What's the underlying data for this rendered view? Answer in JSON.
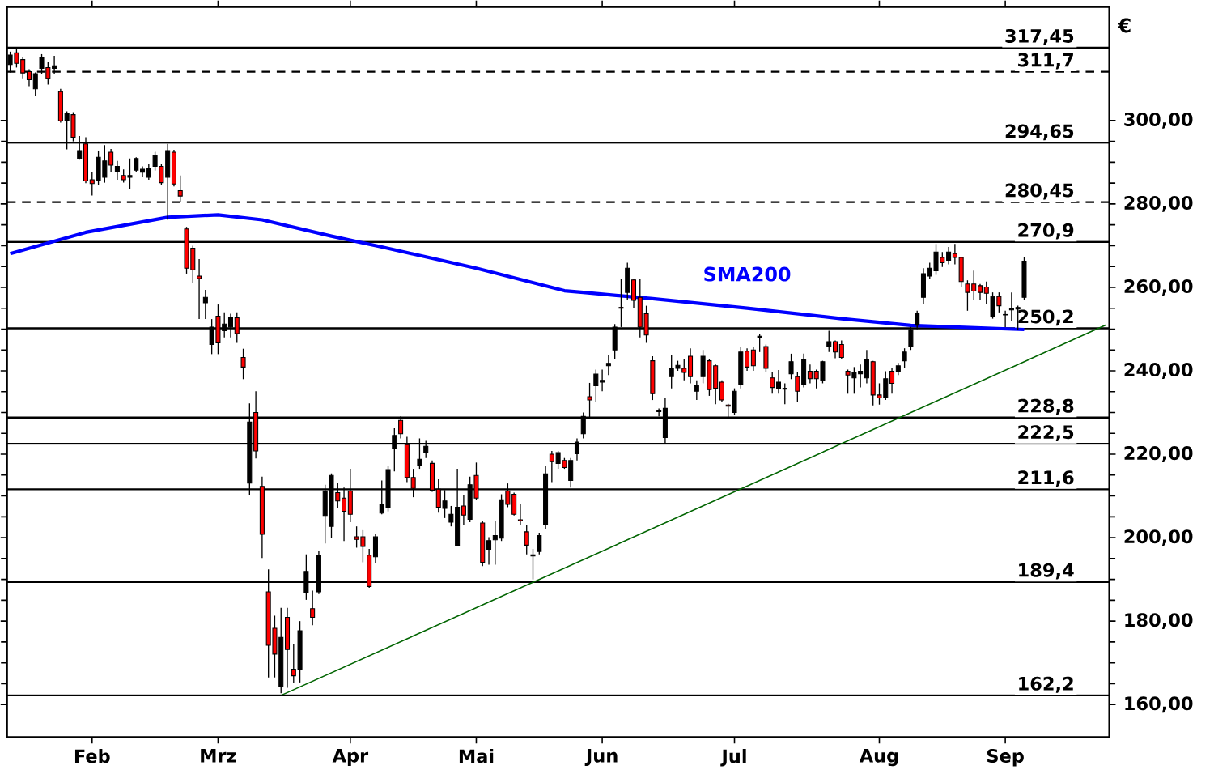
{
  "chart_data": {
    "type": "candlestick",
    "ylabel": "€",
    "categories": [
      null,
      null,
      null,
      null,
      null,
      null,
      null,
      null,
      null,
      null,
      null,
      null,
      null,
      "Feb",
      null,
      null,
      null,
      null,
      null,
      null,
      null,
      null,
      null,
      null,
      null,
      null,
      null,
      null,
      null,
      null,
      null,
      null,
      null,
      "Mrz",
      null,
      null,
      null,
      null,
      null,
      null,
      null,
      null,
      null,
      null,
      null,
      null,
      null,
      null,
      null,
      null,
      null,
      null,
      null,
      null,
      "Apr",
      null,
      null,
      null,
      null,
      null,
      null,
      null,
      null,
      null,
      null,
      null,
      null,
      null,
      null,
      null,
      null,
      null,
      null,
      null,
      "Mai",
      null,
      null,
      null,
      null,
      null,
      null,
      null,
      null,
      null,
      null,
      null,
      null,
      null,
      null,
      null,
      null,
      null,
      null,
      null,
      "Jun",
      null,
      null,
      null,
      null,
      null,
      null,
      null,
      null,
      null,
      null,
      null,
      null,
      null,
      null,
      null,
      null,
      null,
      null,
      null,
      null,
      "Jul",
      null,
      null,
      null,
      null,
      null,
      null,
      null,
      null,
      null,
      null,
      null,
      null,
      null,
      null,
      null,
      null,
      null,
      null,
      null,
      null,
      null,
      null,
      "Aug",
      null,
      null,
      null,
      null,
      null,
      null,
      null,
      null,
      null,
      null,
      null,
      null,
      null,
      null,
      null,
      null,
      null,
      null,
      null,
      "Sep",
      null,
      null,
      null,
      null,
      null,
      null,
      null,
      null,
      null,
      null,
      null,
      null,
      null,
      null,
      null,
      null
    ],
    "ylim": [
      152.2,
      327.2
    ],
    "yticks": [
      {
        "value": 160,
        "label": "160,00"
      },
      {
        "value": 180,
        "label": "180,00"
      },
      {
        "value": 200,
        "label": "200,00"
      },
      {
        "value": 220,
        "label": "220,00"
      },
      {
        "value": 240,
        "label": "240,00"
      },
      {
        "value": 260,
        "label": "260,00"
      },
      {
        "value": 280,
        "label": "280,00"
      },
      {
        "value": 300,
        "label": "300,00"
      }
    ],
    "grid": false,
    "legend": false,
    "ref_lines": [
      {
        "axis": "y",
        "value": 317.45,
        "label": "317,45",
        "color": "#000000",
        "line_style": "solid"
      },
      {
        "axis": "y",
        "value": 311.7,
        "label": "311,7",
        "color": "#000000",
        "line_style": "dashed"
      },
      {
        "axis": "y",
        "value": 294.65,
        "label": "294,65",
        "color": "#000000",
        "line_style": "solid"
      },
      {
        "axis": "y",
        "value": 280.45,
        "label": "280,45",
        "color": "#000000",
        "line_style": "dashed"
      },
      {
        "axis": "y",
        "value": 270.9,
        "label": "270,9",
        "color": "#000000",
        "line_style": "solid"
      },
      {
        "axis": "y",
        "value": 250.2,
        "label": "250,2",
        "color": "#000000",
        "line_style": "solid"
      },
      {
        "axis": "y",
        "value": 228.8,
        "label": "228,8",
        "color": "#000000",
        "line_style": "solid"
      },
      {
        "axis": "y",
        "value": 222.5,
        "label": "222,5",
        "color": "#000000",
        "line_style": "solid"
      },
      {
        "axis": "y",
        "value": 211.6,
        "label": "211,6",
        "color": "#000000",
        "line_style": "solid"
      },
      {
        "axis": "y",
        "value": 189.4,
        "label": "189,4",
        "color": "#000000",
        "line_style": "solid"
      },
      {
        "axis": "y",
        "value": 162.2,
        "label": "162,2",
        "color": "#000000",
        "line_style": "solid"
      }
    ],
    "series": [
      {
        "ohlc": [
          [
            313.4,
            316.5,
            311.5,
            315.7
          ],
          [
            316.2,
            317.2,
            312.7,
            313.7
          ],
          [
            314.6,
            315.3,
            310.1,
            311.4
          ],
          [
            311.7,
            312.3,
            308.2,
            309.8
          ],
          [
            307.6,
            311.5,
            306.0,
            311.2
          ],
          [
            312.5,
            315.9,
            311.2,
            315.0
          ],
          [
            312.7,
            314.0,
            308.6,
            310.1
          ],
          [
            312.5,
            315.5,
            311.2,
            313.1
          ],
          [
            306.9,
            307.6,
            299.5,
            299.9
          ],
          [
            299.9,
            302.2,
            293.1,
            301.8
          ],
          [
            301.4,
            302.0,
            295.0,
            296.0
          ],
          [
            290.9,
            296.3,
            290.6,
            292.8
          ],
          [
            294.4,
            296.0,
            285.0,
            285.5
          ],
          [
            285.8,
            287.7,
            282.0,
            284.9
          ],
          [
            285.5,
            292.8,
            284.5,
            291.2
          ],
          [
            286.4,
            294.1,
            285.1,
            290.3
          ],
          [
            292.4,
            293.2,
            287.7,
            289.3
          ],
          [
            287.7,
            290.3,
            285.8,
            289.0
          ],
          [
            286.8,
            288.3,
            285.1,
            285.8
          ],
          [
            286.4,
            290.9,
            283.5,
            286.8
          ],
          [
            288.1,
            291.2,
            287.6,
            290.9
          ],
          [
            287.6,
            289.0,
            286.4,
            288.3
          ],
          [
            286.4,
            289.5,
            285.8,
            288.6
          ],
          [
            289.0,
            292.5,
            288.0,
            291.6
          ],
          [
            289.0,
            289.5,
            284.5,
            285.1
          ],
          [
            286.4,
            294.4,
            276.2,
            292.8
          ],
          [
            292.4,
            293.0,
            284.2,
            284.8
          ],
          [
            283.2,
            286.8,
            280.4,
            281.9
          ],
          [
            274.0,
            274.5,
            263.3,
            264.6
          ],
          [
            269.4,
            270.0,
            261.0,
            264.2
          ],
          [
            262.7,
            266.8,
            252.4,
            262.1
          ],
          [
            256.3,
            259.4,
            252.4,
            257.6
          ],
          [
            246.3,
            252.4,
            244.0,
            250.5
          ],
          [
            253.1,
            255.9,
            244.0,
            246.7
          ],
          [
            249.6,
            254.0,
            248.0,
            251.2
          ],
          [
            250.5,
            253.7,
            248.0,
            252.7
          ],
          [
            252.7,
            254.0,
            246.7,
            248.9
          ],
          [
            243.2,
            245.3,
            238.0,
            240.9
          ],
          [
            213.1,
            232.2,
            210.1,
            227.7
          ],
          [
            230.0,
            235.1,
            219.0,
            220.8
          ],
          [
            212.3,
            214.6,
            195.1,
            200.8
          ],
          [
            187.0,
            192.4,
            166.5,
            174.2
          ],
          [
            178.3,
            181.3,
            166.5,
            172.1
          ],
          [
            164.2,
            183.2,
            162.7,
            176.1
          ],
          [
            180.9,
            183.2,
            164.0,
            173.2
          ],
          [
            168.5,
            174.5,
            165.3,
            166.9
          ],
          [
            168.5,
            180.0,
            165.3,
            177.7
          ],
          [
            186.8,
            196.0,
            185.1,
            191.9
          ],
          [
            183.0,
            187.3,
            179.0,
            180.9
          ],
          [
            187.0,
            196.7,
            186.5,
            195.8
          ],
          [
            205.3,
            212.7,
            198.6,
            211.2
          ],
          [
            202.7,
            215.4,
            200.0,
            214.9
          ],
          [
            210.8,
            213.0,
            207.2,
            208.8
          ],
          [
            209.5,
            212.0,
            199.2,
            206.3
          ],
          [
            211.2,
            216.5,
            203.7,
            205.6
          ],
          [
            200.2,
            202.7,
            197.6,
            199.6
          ],
          [
            200.2,
            201.8,
            194.1,
            197.9
          ],
          [
            195.8,
            197.3,
            188.0,
            188.3
          ],
          [
            195.4,
            200.8,
            194.0,
            200.2
          ],
          [
            205.9,
            213.7,
            205.6,
            208.0
          ],
          [
            207.3,
            217.2,
            206.3,
            216.3
          ],
          [
            221.3,
            226.2,
            215.9,
            224.5
          ],
          [
            228.1,
            229.1,
            223.8,
            224.9
          ],
          [
            222.3,
            224.2,
            213.3,
            214.4
          ],
          [
            214.4,
            216.5,
            209.7,
            211.8
          ],
          [
            217.2,
            223.8,
            216.5,
            218.8
          ],
          [
            220.4,
            223.2,
            219.1,
            221.9
          ],
          [
            217.8,
            218.5,
            211.0,
            211.4
          ],
          [
            211.6,
            214.0,
            206.0,
            207.3
          ],
          [
            207.0,
            211.4,
            204.7,
            208.8
          ],
          [
            203.7,
            207.6,
            202.7,
            205.6
          ],
          [
            198.2,
            216.5,
            198.0,
            207.3
          ],
          [
            207.6,
            210.1,
            203.0,
            205.4
          ],
          [
            204.4,
            214.6,
            203.7,
            212.7
          ],
          [
            214.9,
            218.0,
            209.0,
            209.5
          ],
          [
            203.5,
            204.0,
            193.2,
            194.1
          ],
          [
            197.2,
            200.1,
            193.5,
            199.3
          ],
          [
            199.5,
            204.0,
            193.5,
            200.5
          ],
          [
            199.9,
            210.4,
            199.2,
            209.1
          ],
          [
            211.2,
            213.0,
            207.3,
            208.0
          ],
          [
            210.4,
            210.8,
            205.3,
            205.6
          ],
          [
            204.3,
            208.0,
            203.0,
            204.0
          ],
          [
            201.4,
            203.1,
            196.0,
            198.2
          ],
          [
            195.6,
            197.3,
            190.0,
            195.9
          ],
          [
            196.7,
            201.2,
            196.0,
            200.5
          ],
          [
            203.1,
            217.2,
            202.0,
            215.3
          ],
          [
            220.0,
            220.8,
            213.3,
            218.2
          ],
          [
            217.8,
            220.8,
            216.5,
            220.4
          ],
          [
            218.5,
            219.1,
            216.5,
            216.8
          ],
          [
            213.7,
            219.1,
            212.0,
            218.5
          ],
          [
            220.1,
            223.8,
            218.5,
            222.9
          ],
          [
            224.9,
            230.0,
            223.8,
            229.1
          ],
          [
            233.8,
            237.1,
            228.5,
            233.0
          ],
          [
            236.4,
            240.3,
            232.6,
            239.2
          ],
          [
            237.3,
            240.3,
            235.1,
            237.7
          ],
          [
            241.2,
            243.7,
            239.0,
            241.8
          ],
          [
            245.0,
            251.2,
            242.8,
            250.5
          ],
          [
            255.2,
            262.0,
            250.5,
            255.0
          ],
          [
            258.8,
            265.9,
            257.0,
            264.6
          ],
          [
            261.8,
            262.0,
            255.0,
            256.9
          ],
          [
            257.6,
            262.0,
            248.0,
            250.5
          ],
          [
            253.7,
            255.6,
            246.7,
            248.6
          ],
          [
            242.4,
            243.5,
            233.0,
            234.5
          ],
          [
            230.4,
            231.0,
            229.1,
            230.2
          ],
          [
            224.0,
            233.5,
            222.7,
            231.0
          ],
          [
            238.6,
            243.7,
            235.8,
            240.6
          ],
          [
            240.6,
            242.4,
            240.0,
            241.3
          ],
          [
            240.6,
            242.8,
            237.7,
            239.6
          ],
          [
            243.5,
            245.4,
            237.0,
            238.6
          ],
          [
            235.1,
            237.7,
            233.0,
            236.4
          ],
          [
            238.6,
            245.0,
            237.0,
            243.5
          ],
          [
            242.4,
            242.8,
            234.0,
            235.5
          ],
          [
            241.2,
            241.5,
            232.0,
            235.8
          ],
          [
            237.3,
            237.7,
            232.5,
            233.0
          ],
          [
            231.8,
            232.1,
            228.7,
            231.5
          ],
          [
            230.0,
            235.8,
            229.4,
            235.1
          ],
          [
            236.8,
            245.8,
            235.8,
            244.5
          ],
          [
            244.7,
            245.4,
            240.0,
            240.9
          ],
          [
            245.0,
            245.8,
            240.0,
            241.2
          ],
          [
            247.9,
            248.8,
            244.5,
            248.3
          ],
          [
            245.8,
            246.3,
            239.6,
            240.6
          ],
          [
            238.3,
            239.6,
            234.5,
            236.0
          ],
          [
            235.8,
            240.2,
            234.5,
            237.3
          ],
          [
            235.6,
            237.0,
            232.0,
            235.8
          ],
          [
            239.3,
            244.1,
            238.0,
            242.2
          ],
          [
            238.6,
            239.6,
            232.6,
            235.1
          ],
          [
            236.8,
            244.1,
            236.0,
            242.8
          ],
          [
            239.9,
            241.5,
            237.0,
            238.1
          ],
          [
            239.9,
            240.3,
            235.8,
            238.1
          ],
          [
            237.7,
            242.4,
            237.0,
            242.2
          ],
          [
            245.8,
            249.6,
            244.5,
            247.0
          ],
          [
            247.0,
            247.3,
            243.0,
            244.5
          ],
          [
            246.3,
            247.3,
            242.8,
            243.2
          ],
          [
            239.9,
            240.3,
            234.5,
            239.0
          ],
          [
            238.3,
            240.9,
            234.5,
            239.6
          ],
          [
            239.3,
            241.5,
            236.0,
            239.9
          ],
          [
            238.3,
            245.0,
            237.0,
            242.8
          ],
          [
            242.2,
            242.4,
            231.7,
            234.2
          ],
          [
            234.2,
            237.0,
            231.9,
            233.5
          ],
          [
            233.5,
            239.9,
            233.0,
            238.1
          ],
          [
            239.9,
            240.6,
            234.5,
            237.0
          ],
          [
            239.9,
            241.9,
            239.0,
            241.2
          ],
          [
            242.4,
            245.4,
            240.6,
            244.5
          ],
          [
            245.8,
            250.5,
            245.0,
            249.9
          ],
          [
            250.9,
            254.4,
            250.0,
            253.7
          ],
          [
            257.6,
            264.6,
            256.0,
            263.3
          ],
          [
            262.7,
            265.9,
            262.0,
            264.6
          ],
          [
            264.0,
            270.4,
            263.0,
            268.5
          ],
          [
            267.2,
            268.5,
            264.9,
            265.9
          ],
          [
            266.5,
            269.7,
            265.5,
            268.5
          ],
          [
            268.1,
            270.4,
            265.5,
            267.2
          ],
          [
            267.2,
            267.2,
            260.0,
            261.4
          ],
          [
            260.8,
            261.7,
            254.4,
            258.8
          ],
          [
            260.8,
            264.0,
            257.0,
            259.1
          ],
          [
            260.4,
            260.8,
            257.0,
            258.8
          ],
          [
            260.1,
            261.4,
            256.0,
            258.6
          ],
          [
            253.1,
            258.8,
            252.5,
            257.8
          ],
          [
            257.8,
            258.8,
            254.0,
            255.6
          ],
          [
            253.4,
            254.4,
            250.5,
            253.5
          ],
          [
            254.6,
            258.8,
            252.0,
            255.0
          ],
          [
            254.8,
            255.6,
            249.9,
            255.2
          ],
          [
            257.6,
            267.2,
            257.0,
            266.3
          ],
          null,
          null,
          null,
          null,
          null,
          null,
          null,
          null,
          null,
          null,
          null,
          null,
          null
        ],
        "colors": [
          "#000000",
          "#ff0000",
          "#ff0000",
          "#ff0000",
          "#000000",
          "#000000",
          "#ff0000",
          "#000000",
          "#ff0000",
          "#000000",
          "#ff0000",
          "#000000",
          "#ff0000",
          "#ff0000",
          "#000000",
          "#000000",
          "#ff0000",
          "#000000",
          "#ff0000",
          "#000000",
          "#000000",
          "#000000",
          "#000000",
          "#000000",
          "#ff0000",
          "#000000",
          "#ff0000",
          "#ff0000",
          "#ff0000",
          "#ff0000",
          "#ff0000",
          "#000000",
          "#000000",
          "#ff0000",
          "#000000",
          "#000000",
          "#ff0000",
          "#ff0000",
          "#000000",
          "#ff0000",
          "#ff0000",
          "#ff0000",
          "#ff0000",
          "#000000",
          "#ff0000",
          "#ff0000",
          "#000000",
          "#000000",
          "#ff0000",
          "#000000",
          "#000000",
          "#000000",
          "#ff0000",
          "#ff0000",
          "#ff0000",
          "#ff0000",
          "#ff0000",
          "#ff0000",
          "#000000",
          "#000000",
          "#000000",
          "#000000",
          "#ff0000",
          "#ff0000",
          "#ff0000",
          "#000000",
          "#000000",
          "#ff0000",
          "#ff0000",
          "#000000",
          "#000000",
          "#000000",
          "#ff0000",
          "#000000",
          "#ff0000",
          "#ff0000",
          "#000000",
          "#000000",
          "#000000",
          "#ff0000",
          "#ff0000",
          "#ff0000",
          "#ff0000",
          "#000000",
          "#000000",
          "#000000",
          "#ff0000",
          "#000000",
          "#ff0000",
          "#000000",
          "#000000",
          "#000000",
          "#ff0000",
          "#000000",
          "#000000",
          "#000000",
          "#000000",
          "#ff0000",
          "#000000",
          "#ff0000",
          "#ff0000",
          "#ff0000",
          "#ff0000",
          "#ff0000",
          "#000000",
          "#000000",
          "#000000",
          "#ff0000",
          "#ff0000",
          "#000000",
          "#000000",
          "#ff0000",
          "#ff0000",
          "#ff0000",
          "#ff0000",
          "#000000",
          "#000000",
          "#ff0000",
          "#ff0000",
          "#000000",
          "#ff0000",
          "#ff0000",
          "#000000",
          "#000000",
          "#000000",
          "#ff0000",
          "#000000",
          "#ff0000",
          "#ff0000",
          "#000000",
          "#000000",
          "#ff0000",
          "#ff0000",
          "#ff0000",
          "#000000",
          "#000000",
          "#000000",
          "#ff0000",
          "#ff0000",
          "#000000",
          "#ff0000",
          "#000000",
          "#000000",
          "#000000",
          "#000000",
          "#000000",
          "#000000",
          "#000000",
          "#ff0000",
          "#000000",
          "#ff0000",
          "#ff0000",
          "#ff0000",
          "#ff0000",
          "#ff0000",
          "#ff0000",
          "#000000",
          "#ff0000",
          "#000000",
          "#000000",
          "#000000",
          "#000000",
          null,
          null,
          null,
          null,
          null,
          null,
          null,
          null,
          null,
          null,
          null,
          null,
          null
        ]
      },
      {
        "type": "line",
        "name": "SMA200",
        "color": "#0000ff",
        "values": [
          268.1,
          null,
          null,
          null,
          null,
          null,
          null,
          null,
          null,
          null,
          null,
          null,
          273.2,
          null,
          null,
          null,
          null,
          null,
          null,
          null,
          null,
          null,
          null,
          null,
          null,
          276.8,
          null,
          null,
          null,
          null,
          null,
          null,
          null,
          277.4,
          null,
          null,
          null,
          null,
          null,
          null,
          276.2,
          null,
          null,
          null,
          null,
          null,
          null,
          null,
          null,
          null,
          null,
          272.3,
          null,
          null,
          null,
          null,
          null,
          null,
          null,
          269.7,
          null,
          null,
          null,
          null,
          null,
          null,
          null,
          null,
          null,
          null,
          null,
          null,
          null,
          null,
          264.6,
          null,
          null,
          null,
          null,
          null,
          null,
          null,
          null,
          null,
          null,
          null,
          null,
          null,
          259.2,
          null,
          null,
          258.8,
          null,
          null,
          null,
          null,
          null,
          null,
          null,
          null,
          null,
          null,
          257.3,
          null,
          null,
          null,
          null,
          null,
          null,
          null,
          null,
          null,
          null,
          null,
          null,
          null,
          null,
          255,
          null,
          null,
          null,
          null,
          null,
          null,
          null,
          null,
          null,
          null,
          null,
          null,
          null,
          null,
          252.5,
          null,
          null,
          null,
          null,
          null,
          null,
          null,
          null,
          null,
          null,
          250.9,
          null,
          null,
          null,
          null,
          null,
          null,
          null,
          null,
          null,
          null,
          null,
          null,
          null,
          null,
          null,
          null,
          null,
          249.9,
          null,
          null,
          null,
          null,
          null,
          null,
          null,
          null,
          null,
          null,
          null,
          null,
          null
        ]
      },
      {
        "type": "line",
        "color": "#006400",
        "values": [
          null,
          null,
          null,
          null,
          null,
          null,
          null,
          null,
          null,
          null,
          null,
          null,
          null,
          null,
          null,
          null,
          null,
          null,
          null,
          null,
          null,
          null,
          null,
          null,
          null,
          null,
          null,
          null,
          null,
          null,
          null,
          null,
          null,
          null,
          null,
          null,
          null,
          null,
          null,
          null,
          null,
          null,
          null,
          162.2,
          null,
          null,
          null,
          null,
          null,
          null,
          null,
          null,
          null,
          null,
          null,
          null,
          null,
          null,
          null,
          null,
          null,
          null,
          null,
          null,
          null,
          null,
          null,
          null,
          null,
          null,
          null,
          null,
          null,
          null,
          null,
          null,
          null,
          null,
          null,
          null,
          null,
          null,
          null,
          null,
          null,
          null,
          null,
          null,
          null,
          null,
          null,
          null,
          null,
          null,
          null,
          null,
          null,
          null,
          null,
          null,
          null,
          null,
          null,
          null,
          null,
          null,
          null,
          null,
          null,
          null,
          null,
          null,
          null,
          null,
          null,
          null,
          null,
          null,
          null,
          null,
          null,
          null,
          null,
          null,
          null,
          null,
          null,
          null,
          null,
          null,
          null,
          null,
          null,
          null,
          null,
          null,
          null,
          null,
          null,
          null,
          null,
          null,
          null,
          null,
          null,
          null,
          null,
          null,
          null,
          null,
          null,
          null,
          null,
          null,
          null,
          null,
          null,
          null,
          null,
          null,
          null,
          null,
          null,
          null,
          null,
          null,
          null,
          null,
          null,
          null,
          null,
          null,
          null,
          null,
          251.0
        ]
      }
    ]
  }
}
